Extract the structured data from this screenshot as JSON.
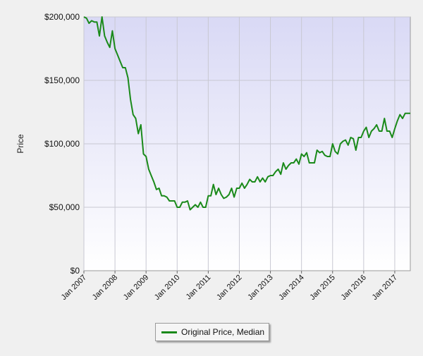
{
  "chart_data": {
    "type": "line",
    "title": "",
    "xlabel": "",
    "ylabel": "Price",
    "ylim": [
      0,
      200000
    ],
    "y_ticks": [
      0,
      50000,
      100000,
      150000,
      200000
    ],
    "y_tick_labels": [
      "$0",
      "$50,000",
      "$100,000",
      "$150,000",
      "$200,000"
    ],
    "x_tick_labels": [
      "Jan 2007",
      "Jan 2008",
      "Jan 2009",
      "Jan 2010",
      "Jan 2011",
      "Jan 2012",
      "Jan 2013",
      "Jan 2014",
      "Jan 2015",
      "Jan 2016",
      "Jan 2017"
    ],
    "x_start": "2007-01",
    "x_end": "2017-07",
    "grid": true,
    "legend_position": "bottom-center",
    "colors": {
      "line": "#1a8a1a",
      "plot_top": "#d9d9f5",
      "plot_bottom": "#ffffff",
      "grid": "#c8c8d2"
    },
    "series": [
      {
        "name": "Original Price, Median",
        "x": [
          "2007-01",
          "2007-02",
          "2007-03",
          "2007-04",
          "2007-05",
          "2007-06",
          "2007-07",
          "2007-08",
          "2007-09",
          "2007-10",
          "2007-11",
          "2007-12",
          "2008-01",
          "2008-02",
          "2008-03",
          "2008-04",
          "2008-05",
          "2008-06",
          "2008-07",
          "2008-08",
          "2008-09",
          "2008-10",
          "2008-11",
          "2008-12",
          "2009-01",
          "2009-02",
          "2009-03",
          "2009-04",
          "2009-05",
          "2009-06",
          "2009-07",
          "2009-08",
          "2009-09",
          "2009-10",
          "2009-11",
          "2009-12",
          "2010-01",
          "2010-02",
          "2010-03",
          "2010-04",
          "2010-05",
          "2010-06",
          "2010-07",
          "2010-08",
          "2010-09",
          "2010-10",
          "2010-11",
          "2010-12",
          "2011-01",
          "2011-02",
          "2011-03",
          "2011-04",
          "2011-05",
          "2011-06",
          "2011-07",
          "2011-08",
          "2011-09",
          "2011-10",
          "2011-11",
          "2011-12",
          "2012-01",
          "2012-02",
          "2012-03",
          "2012-04",
          "2012-05",
          "2012-06",
          "2012-07",
          "2012-08",
          "2012-09",
          "2012-10",
          "2012-11",
          "2012-12",
          "2013-01",
          "2013-02",
          "2013-03",
          "2013-04",
          "2013-05",
          "2013-06",
          "2013-07",
          "2013-08",
          "2013-09",
          "2013-10",
          "2013-11",
          "2013-12",
          "2014-01",
          "2014-02",
          "2014-03",
          "2014-04",
          "2014-05",
          "2014-06",
          "2014-07",
          "2014-08",
          "2014-09",
          "2014-10",
          "2014-11",
          "2014-12",
          "2015-01",
          "2015-02",
          "2015-03",
          "2015-04",
          "2015-05",
          "2015-06",
          "2015-07",
          "2015-08",
          "2015-09",
          "2015-10",
          "2015-11",
          "2015-12",
          "2016-01",
          "2016-02",
          "2016-03",
          "2016-04",
          "2016-05",
          "2016-06",
          "2016-07",
          "2016-08",
          "2016-09",
          "2016-10",
          "2016-11",
          "2016-12",
          "2017-01",
          "2017-02",
          "2017-03",
          "2017-04",
          "2017-05",
          "2017-06",
          "2017-07"
        ],
        "values": [
          200000,
          199000,
          195000,
          197000,
          196000,
          196000,
          185000,
          200000,
          185000,
          180000,
          176000,
          189000,
          175000,
          170000,
          165000,
          160000,
          160000,
          152000,
          135000,
          123000,
          120000,
          108000,
          115000,
          92000,
          90000,
          80000,
          75000,
          70000,
          64000,
          65000,
          59000,
          59000,
          58000,
          55000,
          55000,
          55000,
          50000,
          50000,
          54000,
          54000,
          55000,
          48000,
          50000,
          52000,
          50000,
          54000,
          50000,
          50000,
          59000,
          59000,
          68000,
          60000,
          65000,
          60000,
          57000,
          58000,
          60000,
          65000,
          58000,
          65000,
          65000,
          69000,
          65000,
          68000,
          72000,
          70000,
          70000,
          74000,
          70000,
          73000,
          70000,
          74000,
          75000,
          75000,
          78000,
          80000,
          76000,
          85000,
          80000,
          83000,
          85000,
          85000,
          88000,
          84000,
          92000,
          90000,
          93000,
          85000,
          85000,
          85000,
          95000,
          93000,
          94000,
          91000,
          90000,
          90000,
          100000,
          94000,
          92000,
          100000,
          102000,
          103000,
          99000,
          105000,
          104000,
          95000,
          105000,
          105000,
          110000,
          113000,
          105000,
          110000,
          112000,
          115000,
          110000,
          110000,
          120000,
          110000,
          110000,
          105000,
          112000,
          118000,
          123000,
          120000,
          124000,
          124000,
          124000
        ]
      }
    ]
  }
}
